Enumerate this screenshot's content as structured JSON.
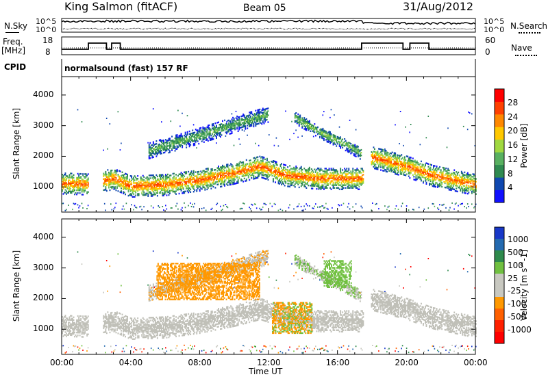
{
  "header": {
    "station": "King Salmon (fitACF)",
    "beam": "Beam 05",
    "date": "31/Aug/2012"
  },
  "status_panels": {
    "nsky_label": "N.Sky",
    "nsearch_label": "N.Search",
    "noise_ticks": [
      "10^5",
      "10^0"
    ],
    "freq_label_line1": "Freq.",
    "freq_label_line2": "[MHz]",
    "freq_ticks": [
      "18",
      "8"
    ],
    "nave_label": "Nave",
    "nave_ticks": [
      "60",
      "0"
    ],
    "cpid_label": "CPID",
    "cpid_text": "normalsound (fast) 157 RF"
  },
  "colors": {
    "power_scale": [
      "#1010ff",
      "#1048b0",
      "#2f8a50",
      "#58b060",
      "#a0d840",
      "#ffc800",
      "#ff8800",
      "#ff4000",
      "#ff0000"
    ],
    "velocity_scale": [
      "#1838c8",
      "#246ab0",
      "#2e8a4c",
      "#70c040",
      "#c8c8c0",
      "#c8c8c0",
      "#ff9800",
      "#ff6000",
      "#ff2000",
      "#ff0000"
    ],
    "ground_scatter": "#c0c0b8",
    "noise_line": "#000000"
  },
  "chart_data": [
    {
      "type": "heatmap",
      "title": "Power",
      "ylabel": "Slant Range [km]",
      "xlabel": "Time UT",
      "colorbar_label": "Power [dB]",
      "colorbar_ticks": [
        "28",
        "24",
        "20",
        "16",
        "12",
        "8",
        "4"
      ],
      "clim": [
        0,
        32
      ],
      "xlim": [
        0,
        24
      ],
      "ylim": [
        180,
        4600
      ],
      "x_ticks": [
        "00:00",
        "04:00",
        "08:00",
        "12:00",
        "16:00",
        "20:00",
        "00:00"
      ],
      "y_ticks": [
        "1000",
        "2000",
        "3000",
        "4000"
      ],
      "bands": [
        {
          "name": "main_echo",
          "points": [
            [
              0,
              1150
            ],
            [
              1.5,
              1120
            ],
            [
              3.0,
              1300
            ],
            [
              4.0,
              1050
            ],
            [
              6.0,
              1100
            ],
            [
              8.0,
              1250
            ],
            [
              10.0,
              1480
            ],
            [
              11.5,
              1700
            ],
            [
              13.0,
              1400
            ],
            [
              15.0,
              1300
            ],
            [
              17.4,
              1300
            ],
            [
              18.0,
              2000
            ],
            [
              20.0,
              1700
            ],
            [
              21.5,
              1400
            ],
            [
              24.0,
              1100
            ]
          ],
          "width": 350,
          "peak": 26
        },
        {
          "name": "upper_arc",
          "points": [
            [
              5.0,
              2200
            ],
            [
              8.0,
              2700
            ],
            [
              10.5,
              3150
            ],
            [
              12.0,
              3400
            ]
          ],
          "width": 250,
          "peak": 13
        },
        {
          "name": "descending_arc",
          "points": [
            [
              13.5,
              3300
            ],
            [
              15.0,
              2800
            ],
            [
              16.5,
              2400
            ],
            [
              17.4,
              2100
            ]
          ],
          "width": 200,
          "peak": 15
        }
      ],
      "gaps_hours": [
        [
          1.55,
          2.35
        ],
        [
          17.5,
          17.9
        ]
      ]
    },
    {
      "type": "heatmap",
      "title": "Velocity",
      "ylabel": "Slant Range [km]",
      "xlabel": "Time UT",
      "colorbar_label": "Velocity [m s^-1]",
      "colorbar_ticks": [
        "1000",
        "500",
        "100",
        "25",
        "-25",
        "-100",
        "-500",
        "-1000"
      ],
      "clim": [
        -1000,
        1000
      ],
      "xlim": [
        0,
        24
      ],
      "ylim": [
        180,
        4600
      ],
      "x_ticks": [
        "00:00",
        "04:00",
        "08:00",
        "12:00",
        "16:00",
        "20:00",
        "00:00"
      ],
      "y_ticks": [
        "1000",
        "2000",
        "3000",
        "4000"
      ],
      "ground_scatter": "grey",
      "features": [
        {
          "name": "negative_patch",
          "time_range": [
            12.2,
            14.5
          ],
          "range_km": [
            900,
            1900
          ],
          "velocity": -100
        },
        {
          "name": "positive_patch",
          "time_range": [
            15.2,
            16.8
          ],
          "range_km": [
            2400,
            3300
          ],
          "velocity": 100
        },
        {
          "name": "orange_arc",
          "time_range": [
            5.5,
            11.5
          ],
          "range_km": [
            2000,
            3200
          ],
          "velocity": -100
        }
      ]
    }
  ]
}
